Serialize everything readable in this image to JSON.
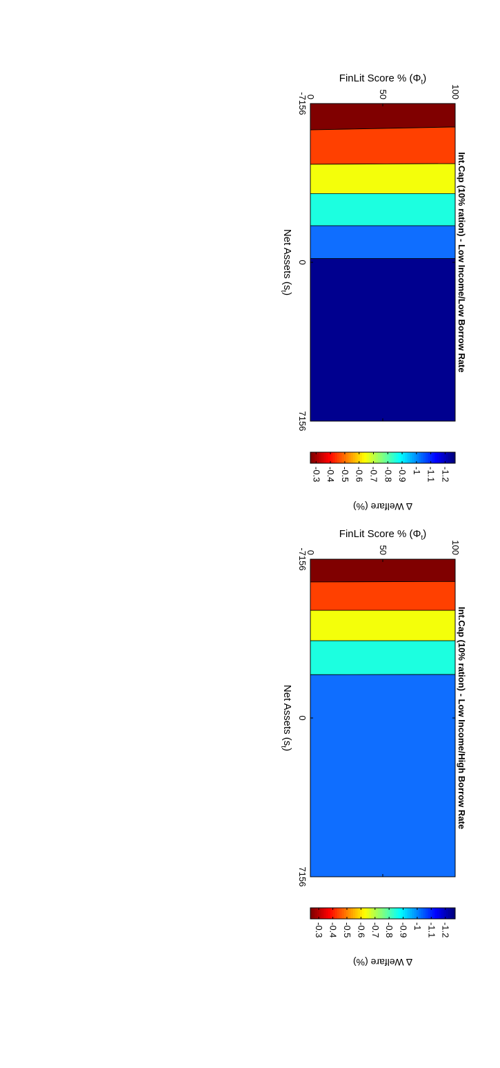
{
  "figure": {
    "rotation": "90deg clockwise"
  },
  "chart_data": [
    {
      "type": "filled-contour",
      "title": "Int.Cap (10% ration) - Low Income/Low Borrow Rate",
      "xlabel": "Net Assets (s",
      "xlabel_sub": "t",
      "xlabel_close": ")",
      "ylabel": "FinLit Score % (Φ",
      "ylabel_sub": "t",
      "ylabel_close": ")",
      "xlim": [
        -7156,
        7156
      ],
      "ylim": [
        0,
        100
      ],
      "xticks": [
        "-7156",
        "0",
        "7156"
      ],
      "yticks": [
        "0",
        "50",
        "100"
      ],
      "colorbar": {
        "label": "Δ Welfare (%)",
        "range": [
          -1.27,
          -0.26
        ],
        "ticks": [
          "-0.3",
          "-0.4",
          "-0.5",
          "-0.6",
          "-0.7",
          "-0.8",
          "-0.9",
          "-1",
          "-1.1",
          "-1.2"
        ],
        "colormap": "jet"
      },
      "regions": [
        {
          "level": -1.25,
          "color": "#800000",
          "boundary_x": [
            -6100,
            -5970
          ]
        },
        {
          "level": -1.05,
          "color": "#ff4000",
          "boundary_x": [
            -4450,
            -4420
          ]
        },
        {
          "level": -0.85,
          "color": "#f4ff0a",
          "boundary_x": [
            -3100,
            -3100
          ]
        },
        {
          "level": -0.65,
          "color": "#1cffe0",
          "boundary_x": [
            -1650,
            -1650
          ]
        },
        {
          "level": -0.45,
          "color": "#0f6eff",
          "boundary_x": [
            -170,
            -170
          ]
        },
        {
          "level": -0.3,
          "color": "#00008f",
          "boundary_x": null
        }
      ]
    },
    {
      "type": "filled-contour",
      "title": "Int.Cap (10% ration) - Low Income/High Borrow Rate",
      "xlabel": "Net Assets (s",
      "xlabel_sub": "t",
      "xlabel_close": ")",
      "ylabel": "FinLit Score % (Φ",
      "ylabel_sub": "t",
      "ylabel_close": ")",
      "xlim": [
        -7156,
        7156
      ],
      "ylim": [
        0,
        100
      ],
      "xticks": [
        "-7156",
        "0",
        "7156"
      ],
      "yticks": [
        "0",
        "50",
        "100"
      ],
      "colorbar": {
        "label": "Δ Welfare (%)",
        "range": [
          -1.27,
          -0.24
        ],
        "ticks": [
          "-0.3",
          "-0.4",
          "-0.5",
          "-0.6",
          "-0.7",
          "-0.8",
          "-0.9",
          "-1",
          "-1.1",
          "-1.2"
        ],
        "colormap": "jet"
      },
      "regions": [
        {
          "level": -1.25,
          "color": "#800000",
          "boundary_x": [
            -6150,
            -6130
          ]
        },
        {
          "level": -1.05,
          "color": "#ff4000",
          "boundary_x": [
            -4850,
            -4850
          ]
        },
        {
          "level": -0.85,
          "color": "#f4ff0a",
          "boundary_x": [
            -3480,
            -3480
          ]
        },
        {
          "level": -0.65,
          "color": "#1cffe0",
          "boundary_x": [
            -1960,
            -1950
          ]
        },
        {
          "level": -0.45,
          "color": "#0f6eff",
          "boundary_x": null
        }
      ]
    }
  ]
}
